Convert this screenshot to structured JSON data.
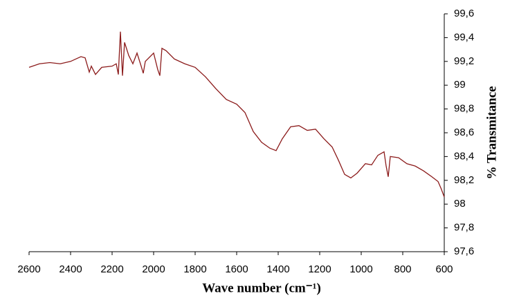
{
  "chart_data": {
    "type": "line",
    "xlabel": "Wave number (cm⁻¹)",
    "ylabel": "% Transmitance",
    "x": [
      2600,
      2550,
      2500,
      2450,
      2400,
      2350,
      2330,
      2310,
      2300,
      2280,
      2250,
      2200,
      2180,
      2170,
      2160,
      2150,
      2140,
      2120,
      2100,
      2080,
      2060,
      2050,
      2040,
      2000,
      1980,
      1970,
      1960,
      1940,
      1900,
      1850,
      1800,
      1750,
      1700,
      1650,
      1600,
      1560,
      1520,
      1480,
      1440,
      1410,
      1380,
      1340,
      1300,
      1260,
      1220,
      1180,
      1140,
      1110,
      1080,
      1050,
      1020,
      980,
      950,
      920,
      890,
      880,
      870,
      860,
      820,
      780,
      740,
      700,
      660,
      630,
      615,
      600
    ],
    "series": [
      {
        "name": "% Transmitance",
        "color": "#8b1a1a",
        "values": [
          99.15,
          99.18,
          99.19,
          99.18,
          99.2,
          99.24,
          99.23,
          99.11,
          99.16,
          99.09,
          99.15,
          99.16,
          99.18,
          99.09,
          99.45,
          99.08,
          99.36,
          99.25,
          99.18,
          99.27,
          99.16,
          99.1,
          99.2,
          99.27,
          99.13,
          99.08,
          99.31,
          99.29,
          99.22,
          99.18,
          99.15,
          99.07,
          98.97,
          98.88,
          98.84,
          98.77,
          98.61,
          98.52,
          98.47,
          98.45,
          98.55,
          98.65,
          98.66,
          98.62,
          98.63,
          98.55,
          98.48,
          98.37,
          98.25,
          98.22,
          98.26,
          98.34,
          98.33,
          98.41,
          98.44,
          98.32,
          98.23,
          98.4,
          98.39,
          98.34,
          98.32,
          98.28,
          98.23,
          98.19,
          98.13,
          98.06
        ]
      }
    ],
    "xlim": [
      2600,
      600
    ],
    "xticks": [
      2600,
      2400,
      2200,
      2000,
      1800,
      1600,
      1400,
      1200,
      1000,
      800,
      600
    ],
    "ylim": [
      97.6,
      99.6
    ],
    "yticks": [
      {
        "value": 97.6,
        "label": "97,6"
      },
      {
        "value": 97.8,
        "label": "97,8"
      },
      98,
      {
        "value": 98.2,
        "label": "98,2"
      },
      {
        "value": 98.4,
        "label": "98,4"
      },
      {
        "value": 98.6,
        "label": "98,6"
      },
      {
        "value": 98.8,
        "label": "98,8"
      },
      99,
      {
        "value": 99.2,
        "label": "99,2"
      },
      {
        "value": 99.4,
        "label": "99,4"
      },
      {
        "value": 99.6,
        "label": "99,6"
      }
    ],
    "y_axis_side": "right",
    "grid": false
  }
}
